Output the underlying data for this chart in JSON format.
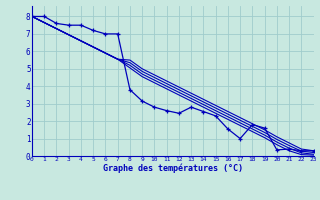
{
  "background_color": "#c8e8e0",
  "grid_color": "#a0cccc",
  "line_color": "#0000bb",
  "xlabel": "Graphe des températures (°C)",
  "xlim": [
    0,
    23
  ],
  "ylim": [
    0,
    8.6
  ],
  "yticks": [
    0,
    1,
    2,
    3,
    4,
    5,
    6,
    7,
    8
  ],
  "xticks": [
    0,
    1,
    2,
    3,
    4,
    5,
    6,
    7,
    8,
    9,
    10,
    11,
    12,
    13,
    14,
    15,
    16,
    17,
    18,
    19,
    20,
    21,
    22,
    23
  ],
  "main_y": [
    8.0,
    8.0,
    7.6,
    7.5,
    7.5,
    7.2,
    7.0,
    7.0,
    3.8,
    3.15,
    2.8,
    2.6,
    2.45,
    2.8,
    2.55,
    2.3,
    1.55,
    1.0,
    1.8,
    1.6,
    0.35,
    0.4,
    0.3,
    0.3
  ],
  "ref_lines": [
    [
      8.0,
      7.65,
      7.3,
      6.95,
      6.6,
      6.25,
      5.9,
      5.55,
      5.5,
      5.0,
      4.65,
      4.3,
      3.95,
      3.6,
      3.25,
      2.9,
      2.55,
      2.2,
      1.85,
      1.5,
      1.1,
      0.75,
      0.4,
      0.3
    ],
    [
      8.0,
      7.65,
      7.3,
      6.95,
      6.6,
      6.25,
      5.9,
      5.55,
      5.35,
      4.85,
      4.5,
      4.15,
      3.8,
      3.45,
      3.1,
      2.75,
      2.4,
      2.05,
      1.7,
      1.35,
      0.95,
      0.6,
      0.28,
      0.2
    ],
    [
      8.0,
      7.65,
      7.3,
      6.95,
      6.6,
      6.25,
      5.9,
      5.55,
      5.2,
      4.7,
      4.35,
      4.0,
      3.65,
      3.3,
      2.95,
      2.6,
      2.25,
      1.9,
      1.55,
      1.2,
      0.8,
      0.45,
      0.18,
      0.1
    ],
    [
      8.0,
      7.65,
      7.3,
      6.95,
      6.6,
      6.25,
      5.9,
      5.55,
      5.05,
      4.55,
      4.2,
      3.85,
      3.5,
      3.15,
      2.8,
      2.45,
      2.1,
      1.75,
      1.4,
      1.05,
      0.65,
      0.3,
      0.08,
      0.05
    ]
  ]
}
